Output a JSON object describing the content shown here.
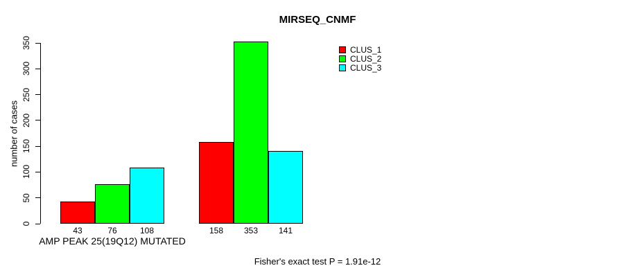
{
  "chart_data": {
    "type": "bar",
    "title": "MIRSEQ_CNMF",
    "ylabel": "number of cases",
    "xlabel": "",
    "categories": [
      "AMP PEAK 25(19Q12) MUTATED",
      ""
    ],
    "series": [
      {
        "name": "CLUS_1",
        "color": "#ff0000",
        "values": [
          43,
          158
        ]
      },
      {
        "name": "CLUS_2",
        "color": "#00ff00",
        "values": [
          76,
          353
        ]
      },
      {
        "name": "CLUS_3",
        "color": "#00ffff",
        "values": [
          108,
          141
        ]
      }
    ],
    "bar_value_labels": [
      [
        43,
        76,
        108
      ],
      [
        158,
        353,
        141
      ]
    ],
    "yticks": [
      0,
      50,
      100,
      150,
      200,
      250,
      300,
      350
    ],
    "ylim": [
      0,
      350
    ],
    "grid": false,
    "legend_position": "top-right",
    "legend_entries": [
      "CLUS_1",
      "CLUS_2",
      "CLUS_3"
    ],
    "annotation": "Fisher's exact test P = 1.91e-12",
    "bar_border_color": "#000000",
    "background_color": "#ffffff"
  }
}
